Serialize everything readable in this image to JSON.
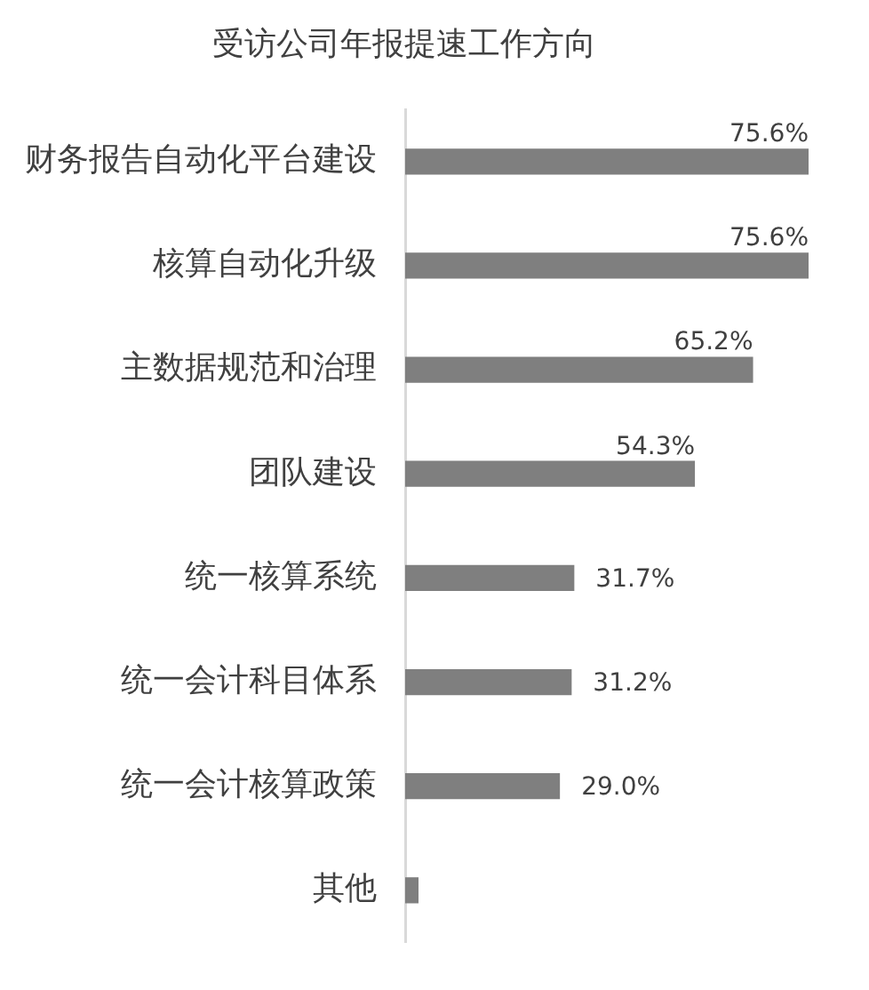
{
  "chart_data": {
    "type": "bar",
    "orientation": "horizontal",
    "title": "受访公司年报提速工作方向",
    "categories": [
      "财务报告自动化平台建设",
      "核算自动化升级",
      "主数据规范和治理",
      "团队建设",
      "统一核算系统",
      "统一会计科目体系",
      "统一会计核算政策",
      "其他"
    ],
    "values": [
      75.6,
      75.6,
      65.2,
      54.3,
      31.7,
      31.2,
      29.0,
      2.5
    ],
    "value_labels": [
      "75.6%",
      "75.6%",
      "65.2%",
      "54.3%",
      "31.7%",
      "31.2%",
      "29.0%",
      null
    ],
    "color": "#7f7f7f",
    "grid": false,
    "legend": false,
    "tick_labels": "y"
  }
}
